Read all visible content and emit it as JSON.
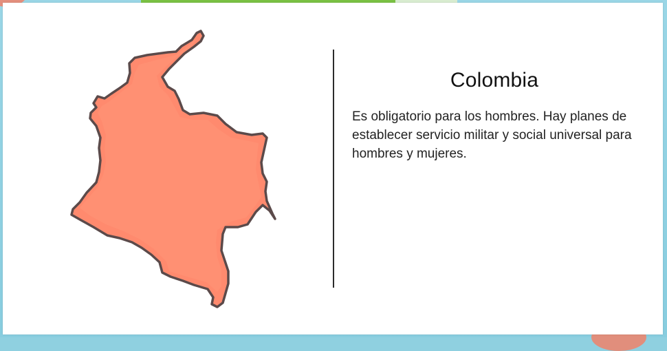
{
  "card": {
    "title": "Colombia",
    "description": "Es obligatorio para los hombres. Hay planes de establecer servicio militar y social universal para hombres y mujeres."
  },
  "map": {
    "region_name": "colombia-map",
    "fill_color": "#ff8a6e",
    "outline_color": "#5b4a4a"
  },
  "background": {
    "accent_green": "#7ac143",
    "accent_blue": "#8fd0e0"
  }
}
